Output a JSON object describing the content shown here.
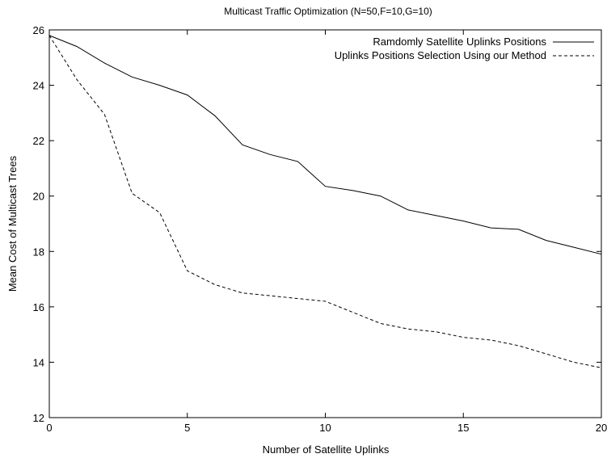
{
  "chart_data": {
    "type": "line",
    "title": "Multicast Traffic Optimization (N=50,F=10,G=10)",
    "xlabel": "Number of Satellite Uplinks",
    "ylabel": "Mean Cost of Multicast Trees",
    "xlim": [
      0,
      20
    ],
    "ylim": [
      12,
      26
    ],
    "xticks": [
      0,
      5,
      10,
      15,
      20
    ],
    "yticks": [
      12,
      14,
      16,
      18,
      20,
      22,
      24,
      26
    ],
    "grid": false,
    "legend_position": "top-right",
    "x": [
      0,
      1,
      2,
      3,
      4,
      5,
      6,
      7,
      8,
      9,
      10,
      11,
      12,
      13,
      14,
      15,
      16,
      17,
      18,
      19,
      20
    ],
    "series": [
      {
        "name": "Ramdomly Satellite Uplinks Positions",
        "style": "solid",
        "values": [
          25.8,
          25.4,
          24.8,
          24.3,
          24.0,
          23.65,
          22.9,
          21.85,
          21.5,
          21.25,
          20.35,
          20.2,
          20.0,
          19.5,
          19.3,
          19.1,
          18.85,
          18.8,
          18.4,
          18.15,
          17.9
        ]
      },
      {
        "name": "Uplinks Positions Selection Using our Method",
        "style": "dashed",
        "values": [
          25.8,
          24.2,
          22.95,
          20.1,
          19.4,
          17.3,
          16.8,
          16.5,
          16.4,
          16.3,
          16.2,
          15.8,
          15.4,
          15.2,
          15.1,
          14.9,
          14.8,
          14.6,
          14.3,
          14.0,
          13.8
        ]
      }
    ]
  }
}
